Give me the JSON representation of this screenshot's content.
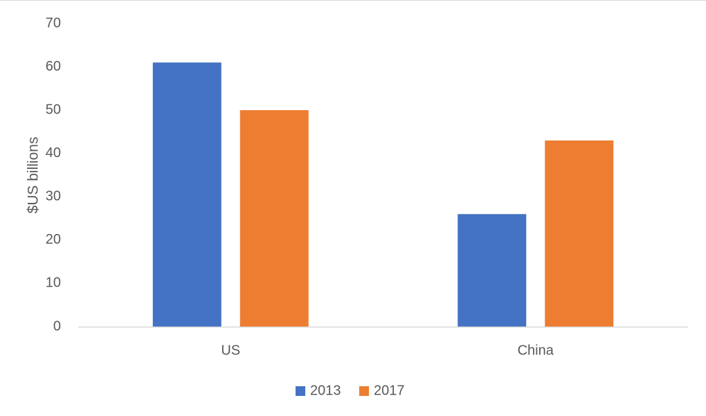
{
  "chart_data": {
    "type": "bar",
    "title": "",
    "xlabel": "",
    "ylabel": "$US billions",
    "categories": [
      "US",
      "China"
    ],
    "series": [
      {
        "name": "2013",
        "color": "#4472c4",
        "values": [
          61,
          26
        ]
      },
      {
        "name": "2017",
        "color": "#ed7d31",
        "values": [
          50,
          43
        ]
      }
    ],
    "ylim": [
      0,
      70
    ],
    "yticks": [
      0,
      10,
      20,
      30,
      40,
      50,
      60,
      70
    ],
    "grid": false,
    "legend_position": "bottom"
  },
  "colors": {
    "text": "#595959",
    "axis_line": "#d9d9d9"
  }
}
